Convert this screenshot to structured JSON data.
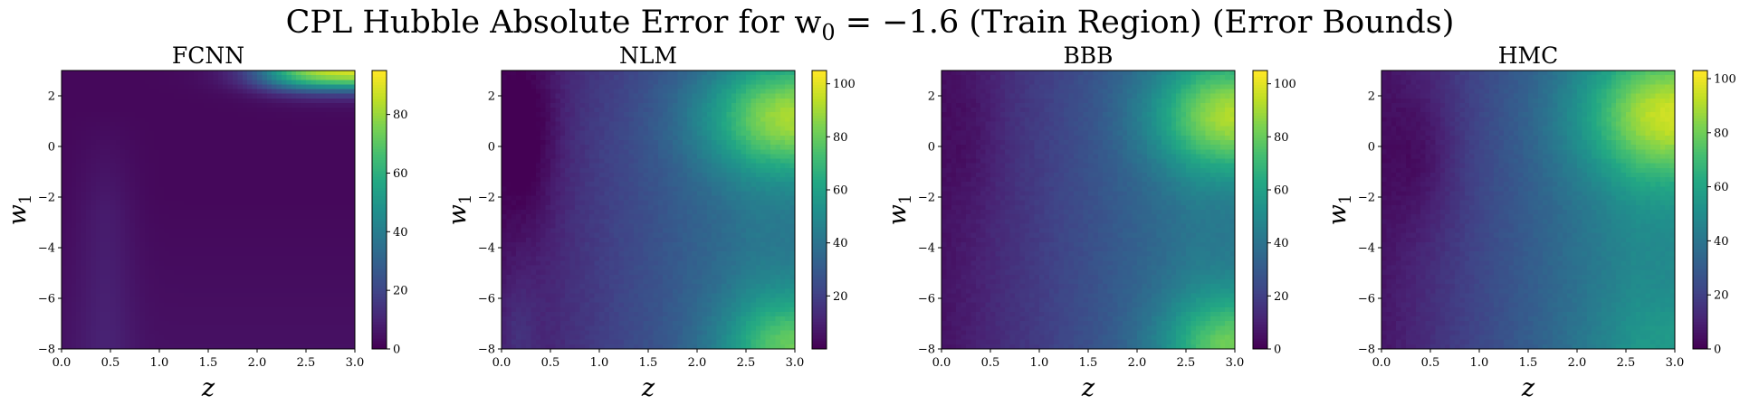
{
  "figure": {
    "title": "CPL Hubble Absolute Error for w",
    "title_sub": "0",
    "title_tail": " = −1.6 (Train Region) (Error Bounds)"
  },
  "chart_data": [
    {
      "type": "heatmap",
      "title": "FCNN",
      "xlabel": "z",
      "ylabel": "w",
      "ylabel_sub": "1",
      "xlim": [
        0.0,
        3.0
      ],
      "ylim": [
        -8,
        3
      ],
      "x_ticks": [
        "0.0",
        "0.5",
        "1.0",
        "1.5",
        "2.0",
        "2.5",
        "3.0"
      ],
      "y_ticks": [
        "−8",
        "−6",
        "−4",
        "−2",
        "0",
        "2"
      ],
      "colormap": "viridis",
      "colorbar_range": [
        0,
        95
      ],
      "colorbar_ticks": [
        "0",
        "20",
        "40",
        "60",
        "80"
      ],
      "pattern": "low error everywhere (about 0–10) with a slight band near z≈0.5; sharp rise to about 95 at high z and w1 > 2"
    },
    {
      "type": "heatmap",
      "title": "NLM",
      "xlabel": "z",
      "ylabel": "w",
      "ylabel_sub": "1",
      "xlim": [
        0.0,
        3.0
      ],
      "ylim": [
        -8,
        3
      ],
      "x_ticks": [
        "0.0",
        "0.5",
        "1.0",
        "1.5",
        "2.0",
        "2.5",
        "3.0"
      ],
      "y_ticks": [
        "−8",
        "−6",
        "−4",
        "−2",
        "0",
        "2"
      ],
      "colormap": "viridis",
      "colorbar_range": [
        0,
        105
      ],
      "colorbar_ticks": [
        "20",
        "40",
        "60",
        "80",
        "100"
      ],
      "pattern": "error grows with z; maximum about 105 near z=3, w1≈1; secondary maximum near z=3, w1=-8; minimum near z≈0.3, w1≈0"
    },
    {
      "type": "heatmap",
      "title": "BBB",
      "xlabel": "z",
      "ylabel": "w",
      "ylabel_sub": "1",
      "xlim": [
        0.0,
        3.0
      ],
      "ylim": [
        -8,
        3
      ],
      "x_ticks": [
        "0.0",
        "0.5",
        "1.0",
        "1.5",
        "2.0",
        "2.5",
        "3.0"
      ],
      "y_ticks": [
        "−8",
        "−6",
        "−4",
        "−2",
        "0",
        "2"
      ],
      "colormap": "viridis",
      "colorbar_range": [
        0,
        105
      ],
      "colorbar_ticks": [
        "0",
        "20",
        "40",
        "60",
        "80",
        "100"
      ],
      "pattern": "error grows with z; maximum about 105 near z=3, w1≈1; secondary maximum near z=3, w1=-8; low near z≈0"
    },
    {
      "type": "heatmap",
      "title": "HMC",
      "xlabel": "z",
      "ylabel": "w",
      "ylabel_sub": "1",
      "xlim": [
        0.0,
        3.0
      ],
      "ylim": [
        -8,
        3
      ],
      "x_ticks": [
        "0.0",
        "0.5",
        "1.0",
        "1.5",
        "2.0",
        "2.5",
        "3.0"
      ],
      "y_ticks": [
        "−8",
        "−6",
        "−4",
        "−2",
        "0",
        "2"
      ],
      "colormap": "viridis",
      "colorbar_range": [
        0,
        103
      ],
      "colorbar_ticks": [
        "0",
        "20",
        "40",
        "60",
        "80",
        "100"
      ],
      "pattern": "error grows with z; maximum about 103 near z=3, w1≈1; minimum near z≈0.4, w1≈0"
    }
  ]
}
